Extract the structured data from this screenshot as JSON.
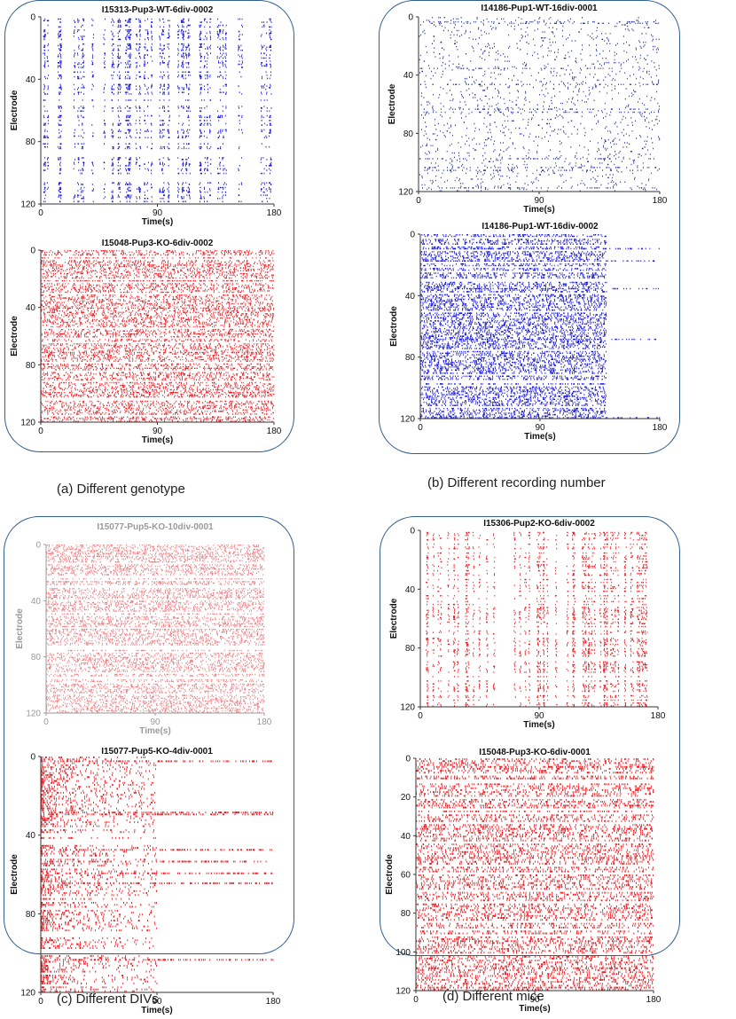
{
  "figure": {
    "ylabel": "Electrode",
    "xlabel": "Time(s)",
    "x_ticks": [
      "0",
      "90",
      "180"
    ],
    "colors": {
      "wt": "#1010d8",
      "ko": "#e8191e",
      "ko_faded": "#f07a7e",
      "frame": "#2f5f8f"
    }
  },
  "captions": {
    "a": "(a) Different genotype",
    "b": "(b) Different recording number",
    "c": "(c) Different DIVs",
    "d": "(d) Different mice"
  },
  "chart_data": [
    {
      "type": "raster",
      "panel": "a",
      "title": "I15313-Pup3-WT-6div-0002",
      "color": "#1010d8",
      "xlabel": "Time(s)",
      "ylabel": "Electrode",
      "xlim": [
        0,
        180
      ],
      "ylim": [
        0,
        120
      ],
      "y_ticks": [
        "0",
        "40",
        "80",
        "120"
      ],
      "pattern": "bursting",
      "activity_end_s": 180
    },
    {
      "type": "raster",
      "panel": "a",
      "title": "I15048-Pup3-KO-6div-0002",
      "color": "#e8191e",
      "xlabel": "Time(s)",
      "ylabel": "Electrode",
      "xlim": [
        0,
        180
      ],
      "ylim": [
        0,
        120
      ],
      "y_ticks": [
        "0",
        "40",
        "80",
        "120"
      ],
      "pattern": "dense",
      "activity_end_s": 180
    },
    {
      "type": "raster",
      "panel": "b",
      "title": "I14186-Pup1-WT-16div-0001",
      "color": "#1a2a8a",
      "xlabel": "Time(s)",
      "ylabel": "Electrode",
      "xlim": [
        0,
        180
      ],
      "ylim": [
        0,
        120
      ],
      "y_ticks": [
        "0",
        "40",
        "80",
        "120"
      ],
      "pattern": "sparse",
      "activity_end_s": 180
    },
    {
      "type": "raster",
      "panel": "b",
      "title": "I14186-Pup1-WT-16div-0002",
      "color": "#1010d8",
      "xlabel": "Time(s)",
      "ylabel": "Electrode",
      "xlim": [
        0,
        180
      ],
      "ylim": [
        0,
        120
      ],
      "y_ticks": [
        "0",
        "40",
        "80",
        "120"
      ],
      "pattern": "dense",
      "activity_end_s": 140
    },
    {
      "type": "raster",
      "panel": "c",
      "title": "I15077-Pup5-KO-10div-0001",
      "color": "#f07a7e",
      "xlabel": "Time(s)",
      "ylabel": "Electrode",
      "xlim": [
        0,
        180
      ],
      "ylim": [
        0,
        120
      ],
      "y_ticks": [
        "0",
        "40",
        "80",
        "120"
      ],
      "pattern": "dense",
      "activity_end_s": 180,
      "faded": true
    },
    {
      "type": "raster",
      "panel": "c",
      "title": "I15077-Pup5-KO-4div-0001",
      "color": "#e8191e",
      "xlabel": "Time(s)",
      "ylabel": "Electrode",
      "xlim": [
        0,
        180
      ],
      "ylim": [
        0,
        120
      ],
      "y_ticks": [
        "0",
        "40",
        "80",
        "120"
      ],
      "pattern": "early",
      "activity_end_s": 180
    },
    {
      "type": "raster",
      "panel": "d",
      "title": "I15306-Pup2-KO-6div-0002",
      "color": "#e8191e",
      "xlabel": "Time(s)",
      "ylabel": "Electrode",
      "xlim": [
        0,
        180
      ],
      "ylim": [
        0,
        120
      ],
      "y_ticks": [
        "0",
        "40",
        "80",
        "120"
      ],
      "pattern": "bursting",
      "activity_end_s": 180
    },
    {
      "type": "raster",
      "panel": "d",
      "title": "I15048-Pup3-KO-6div-0001",
      "color": "#e8191e",
      "xlabel": "Time(s)",
      "ylabel": "Electrode",
      "xlim": [
        0,
        180
      ],
      "ylim": [
        0,
        120
      ],
      "y_ticks": [
        "0",
        "20",
        "40",
        "60",
        "80",
        "100",
        "120"
      ],
      "pattern": "dense",
      "activity_end_s": 180
    }
  ]
}
